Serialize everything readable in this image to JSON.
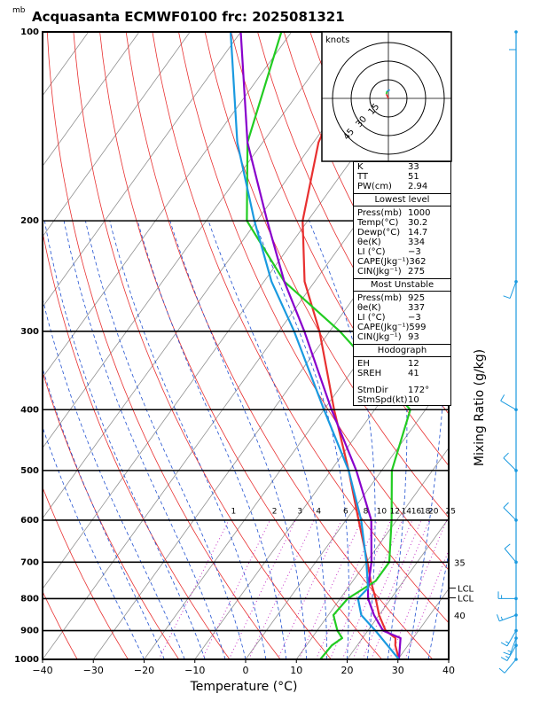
{
  "title": "Acquasanta ECMWF0100  frc: 2025081321",
  "pressure_unit": "mb",
  "hodograph": {
    "unit": "knots",
    "ring_labels": [
      "15",
      "30",
      "45"
    ]
  },
  "indices": {
    "basic": [
      {
        "label": "K",
        "value": "33"
      },
      {
        "label": "TT",
        "value": "51"
      },
      {
        "label": "PW(cm)",
        "value": "2.94"
      }
    ],
    "lowest_level": {
      "title": "Lowest level",
      "rows": [
        {
          "label": "Press(mb)",
          "value": "1000"
        },
        {
          "label": "Temp(°C)",
          "value": "30.2"
        },
        {
          "label": "Dewp(°C)",
          "value": "14.7"
        },
        {
          "label": "θe(K)",
          "value": "334"
        },
        {
          "label": "LI (°C)",
          "value": "−3"
        },
        {
          "label": "CAPE(Jkg⁻¹)",
          "value": "362"
        },
        {
          "label": "CIN(Jkg⁻¹)",
          "value": "275"
        }
      ]
    },
    "most_unstable": {
      "title": "Most Unstable",
      "rows": [
        {
          "label": "Press(mb)",
          "value": "925"
        },
        {
          "label": "θe(K)",
          "value": "337"
        },
        {
          "label": "LI (°C)",
          "value": "−3"
        },
        {
          "label": "CAPE(Jkg⁻¹)",
          "value": "599"
        },
        {
          "label": "CIN(Jkg⁻¹)",
          "value": "93"
        }
      ]
    },
    "hodograph": {
      "title": "Hodograph",
      "rows": [
        {
          "label": "EH",
          "value": "12"
        },
        {
          "label": "SREH",
          "value": "41"
        },
        {
          "label": "StmDir",
          "value": "172°"
        },
        {
          "label": "StmSpd(kt)",
          "value": "10"
        }
      ]
    }
  },
  "chart_data": {
    "type": "line",
    "xlabel": "Temperature (°C)",
    "ylabel": "Mixing Ratio (g/kg)",
    "x_ticks": [
      "−40",
      "−30",
      "−20",
      "−10",
      "0",
      "10",
      "20",
      "30",
      "40"
    ],
    "xlim": [
      -40,
      40
    ],
    "p_ticks": [
      "100",
      "200",
      "300",
      "400",
      "500",
      "600",
      "700",
      "800",
      "900",
      "1000"
    ],
    "plim_mb": [
      100,
      1000
    ],
    "y_scale": "log-pressure",
    "mixing_ratio_labels": [
      "1",
      "2",
      "3",
      "4",
      "6",
      "8",
      "10",
      "12",
      "14",
      "16",
      "18",
      "20",
      "25",
      "30"
    ],
    "mixing_ratio_values": [
      1,
      2,
      3,
      4,
      6,
      8,
      10,
      12,
      14,
      16,
      18,
      20,
      25,
      30
    ],
    "side_labels": [
      {
        "text": "35",
        "p": 700
      },
      {
        "text": "LCL",
        "p": 770
      },
      {
        "text": "LCL",
        "p": 798
      },
      {
        "text": "40",
        "p": 850
      }
    ],
    "series": [
      {
        "color": "#e83030",
        "points": [
          [
            1000,
            30.2
          ],
          [
            950,
            27.5
          ],
          [
            925,
            26.5
          ],
          [
            900,
            23.5
          ],
          [
            850,
            20
          ],
          [
            800,
            17
          ],
          [
            750,
            13.5
          ],
          [
            700,
            10.2
          ],
          [
            600,
            2.5
          ],
          [
            500,
            -6.5
          ],
          [
            400,
            -18
          ],
          [
            350,
            -24.5
          ],
          [
            300,
            -32
          ],
          [
            250,
            -42
          ],
          [
            200,
            -51
          ],
          [
            150,
            -59
          ],
          [
            100,
            -65
          ]
        ]
      },
      {
        "color": "#22cc22",
        "points": [
          [
            1000,
            14.7
          ],
          [
            950,
            15
          ],
          [
            925,
            16
          ],
          [
            900,
            14
          ],
          [
            850,
            11
          ],
          [
            800,
            11.5
          ],
          [
            750,
            14.5
          ],
          [
            700,
            14.5
          ],
          [
            600,
            9
          ],
          [
            500,
            2
          ],
          [
            400,
            -3
          ],
          [
            300,
            -28
          ],
          [
            250,
            -46
          ],
          [
            200,
            -62
          ],
          [
            150,
            -73
          ],
          [
            100,
            -82
          ]
        ]
      },
      {
        "color": "#8800cc",
        "points": [
          [
            1000,
            30.2
          ],
          [
            925,
            27.5
          ],
          [
            900,
            23
          ],
          [
            850,
            19
          ],
          [
            800,
            15.5
          ],
          [
            770,
            14
          ],
          [
            700,
            11
          ],
          [
            600,
            5
          ],
          [
            500,
            -5
          ],
          [
            400,
            -18.5
          ],
          [
            300,
            -35
          ],
          [
            250,
            -46
          ],
          [
            200,
            -58
          ],
          [
            150,
            -73
          ],
          [
            100,
            -90
          ]
        ]
      },
      {
        "color": "#1a9ae0",
        "points": [
          [
            1000,
            30.2
          ],
          [
            900,
            21.5
          ],
          [
            850,
            16.5
          ],
          [
            800,
            13.5
          ],
          [
            770,
            14
          ],
          [
            700,
            10
          ],
          [
            600,
            3
          ],
          [
            500,
            -6.5
          ],
          [
            400,
            -20
          ],
          [
            300,
            -37
          ],
          [
            250,
            -48.5
          ],
          [
            200,
            -60.5
          ],
          [
            150,
            -75
          ],
          [
            100,
            -92
          ]
        ]
      }
    ],
    "wind_barbs": [
      {
        "p": 100,
        "dir": 180,
        "spd_kt": 10
      },
      {
        "p": 250,
        "dir": 200,
        "spd_kt": 10
      },
      {
        "p": 400,
        "dir": 300,
        "spd_kt": 10
      },
      {
        "p": 500,
        "dir": 315,
        "spd_kt": 10
      },
      {
        "p": 600,
        "dir": 315,
        "spd_kt": 10
      },
      {
        "p": 700,
        "dir": 320,
        "spd_kt": 10
      },
      {
        "p": 800,
        "dir": 270,
        "spd_kt": 15
      },
      {
        "p": 850,
        "dir": 250,
        "spd_kt": 15
      },
      {
        "p": 900,
        "dir": 210,
        "spd_kt": 15
      },
      {
        "p": 925,
        "dir": 200,
        "spd_kt": 15
      },
      {
        "p": 950,
        "dir": 210,
        "spd_kt": 15
      },
      {
        "p": 1000,
        "dir": 220,
        "spd_kt": 10
      }
    ],
    "hodograph_vectors": [
      {
        "u": -1.5,
        "v": 3
      },
      {
        "u": 0.5,
        "v": 2
      },
      {
        "u": 2,
        "v": 1
      }
    ],
    "colors": {
      "isotherm": "#909090",
      "dry_adiabat": "#e83030",
      "moist_adiabat": "#2050d0",
      "mixing_ratio": "#c020c0",
      "wind_axis": "#1a9ae0"
    }
  }
}
